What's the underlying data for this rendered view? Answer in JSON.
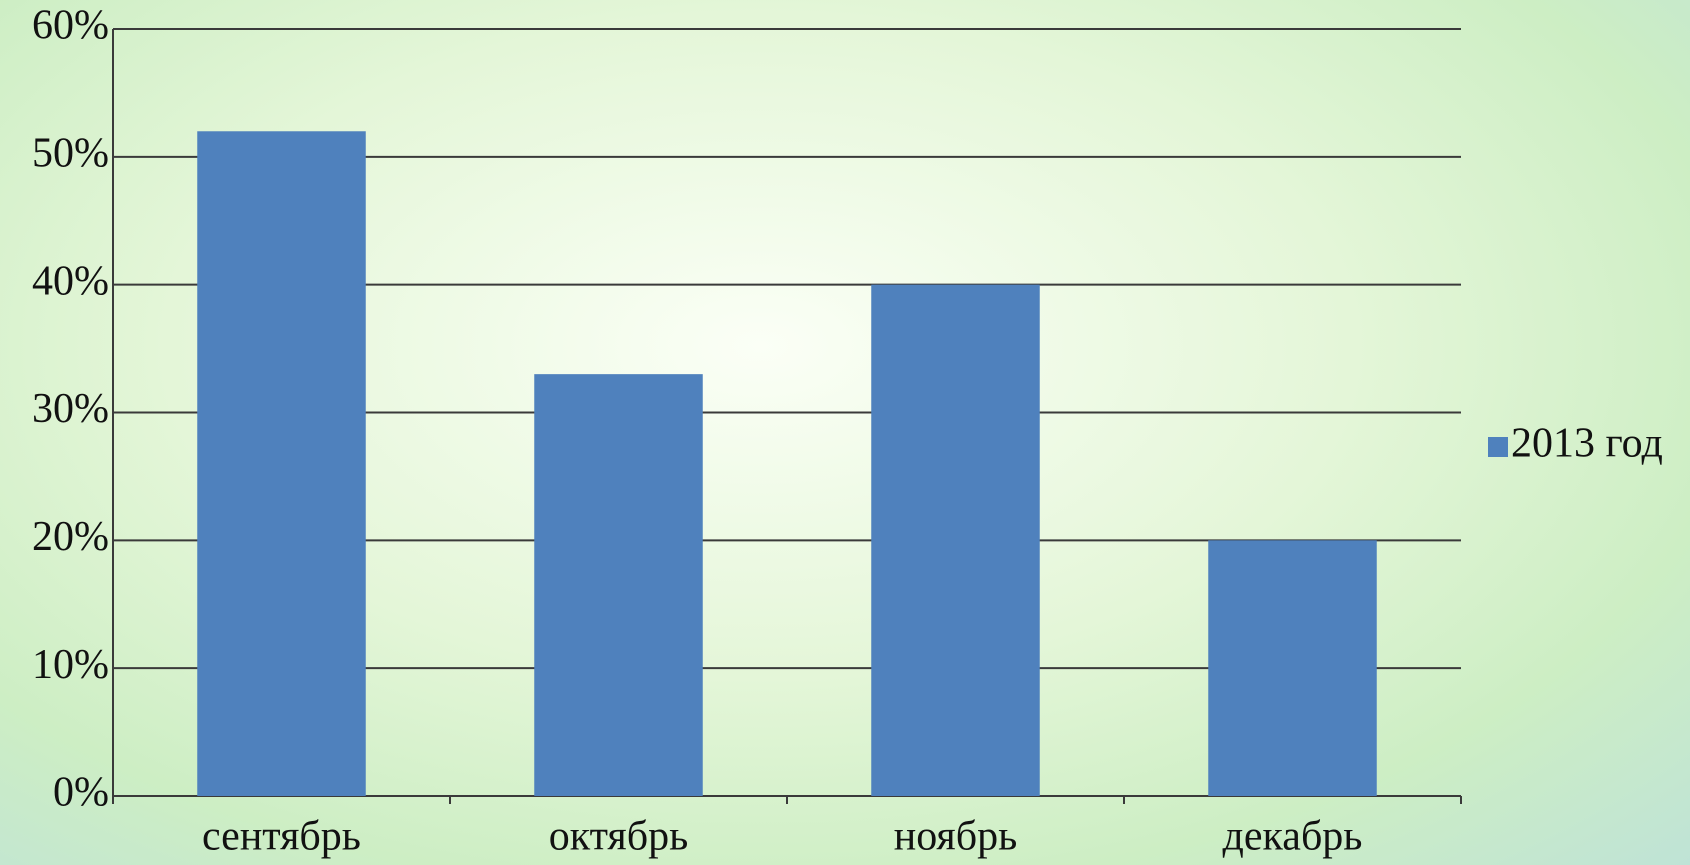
{
  "chart_data": {
    "type": "bar",
    "categories": [
      "сентябрь",
      "октябрь",
      "ноябрь",
      "декабрь"
    ],
    "series": [
      {
        "name": "2013 год",
        "color": "#4f81bd",
        "values": [
          52,
          33,
          40,
          20
        ]
      }
    ],
    "ylim": [
      0,
      60
    ],
    "yticks": [
      {
        "value": 0,
        "label": "0%"
      },
      {
        "value": 10,
        "label": "10%"
      },
      {
        "value": 20,
        "label": "20%"
      },
      {
        "value": 30,
        "label": "30%"
      },
      {
        "value": 40,
        "label": "40%"
      },
      {
        "value": 50,
        "label": "50%"
      },
      {
        "value": 60,
        "label": "60%"
      }
    ],
    "grid": true,
    "legend": "right"
  }
}
